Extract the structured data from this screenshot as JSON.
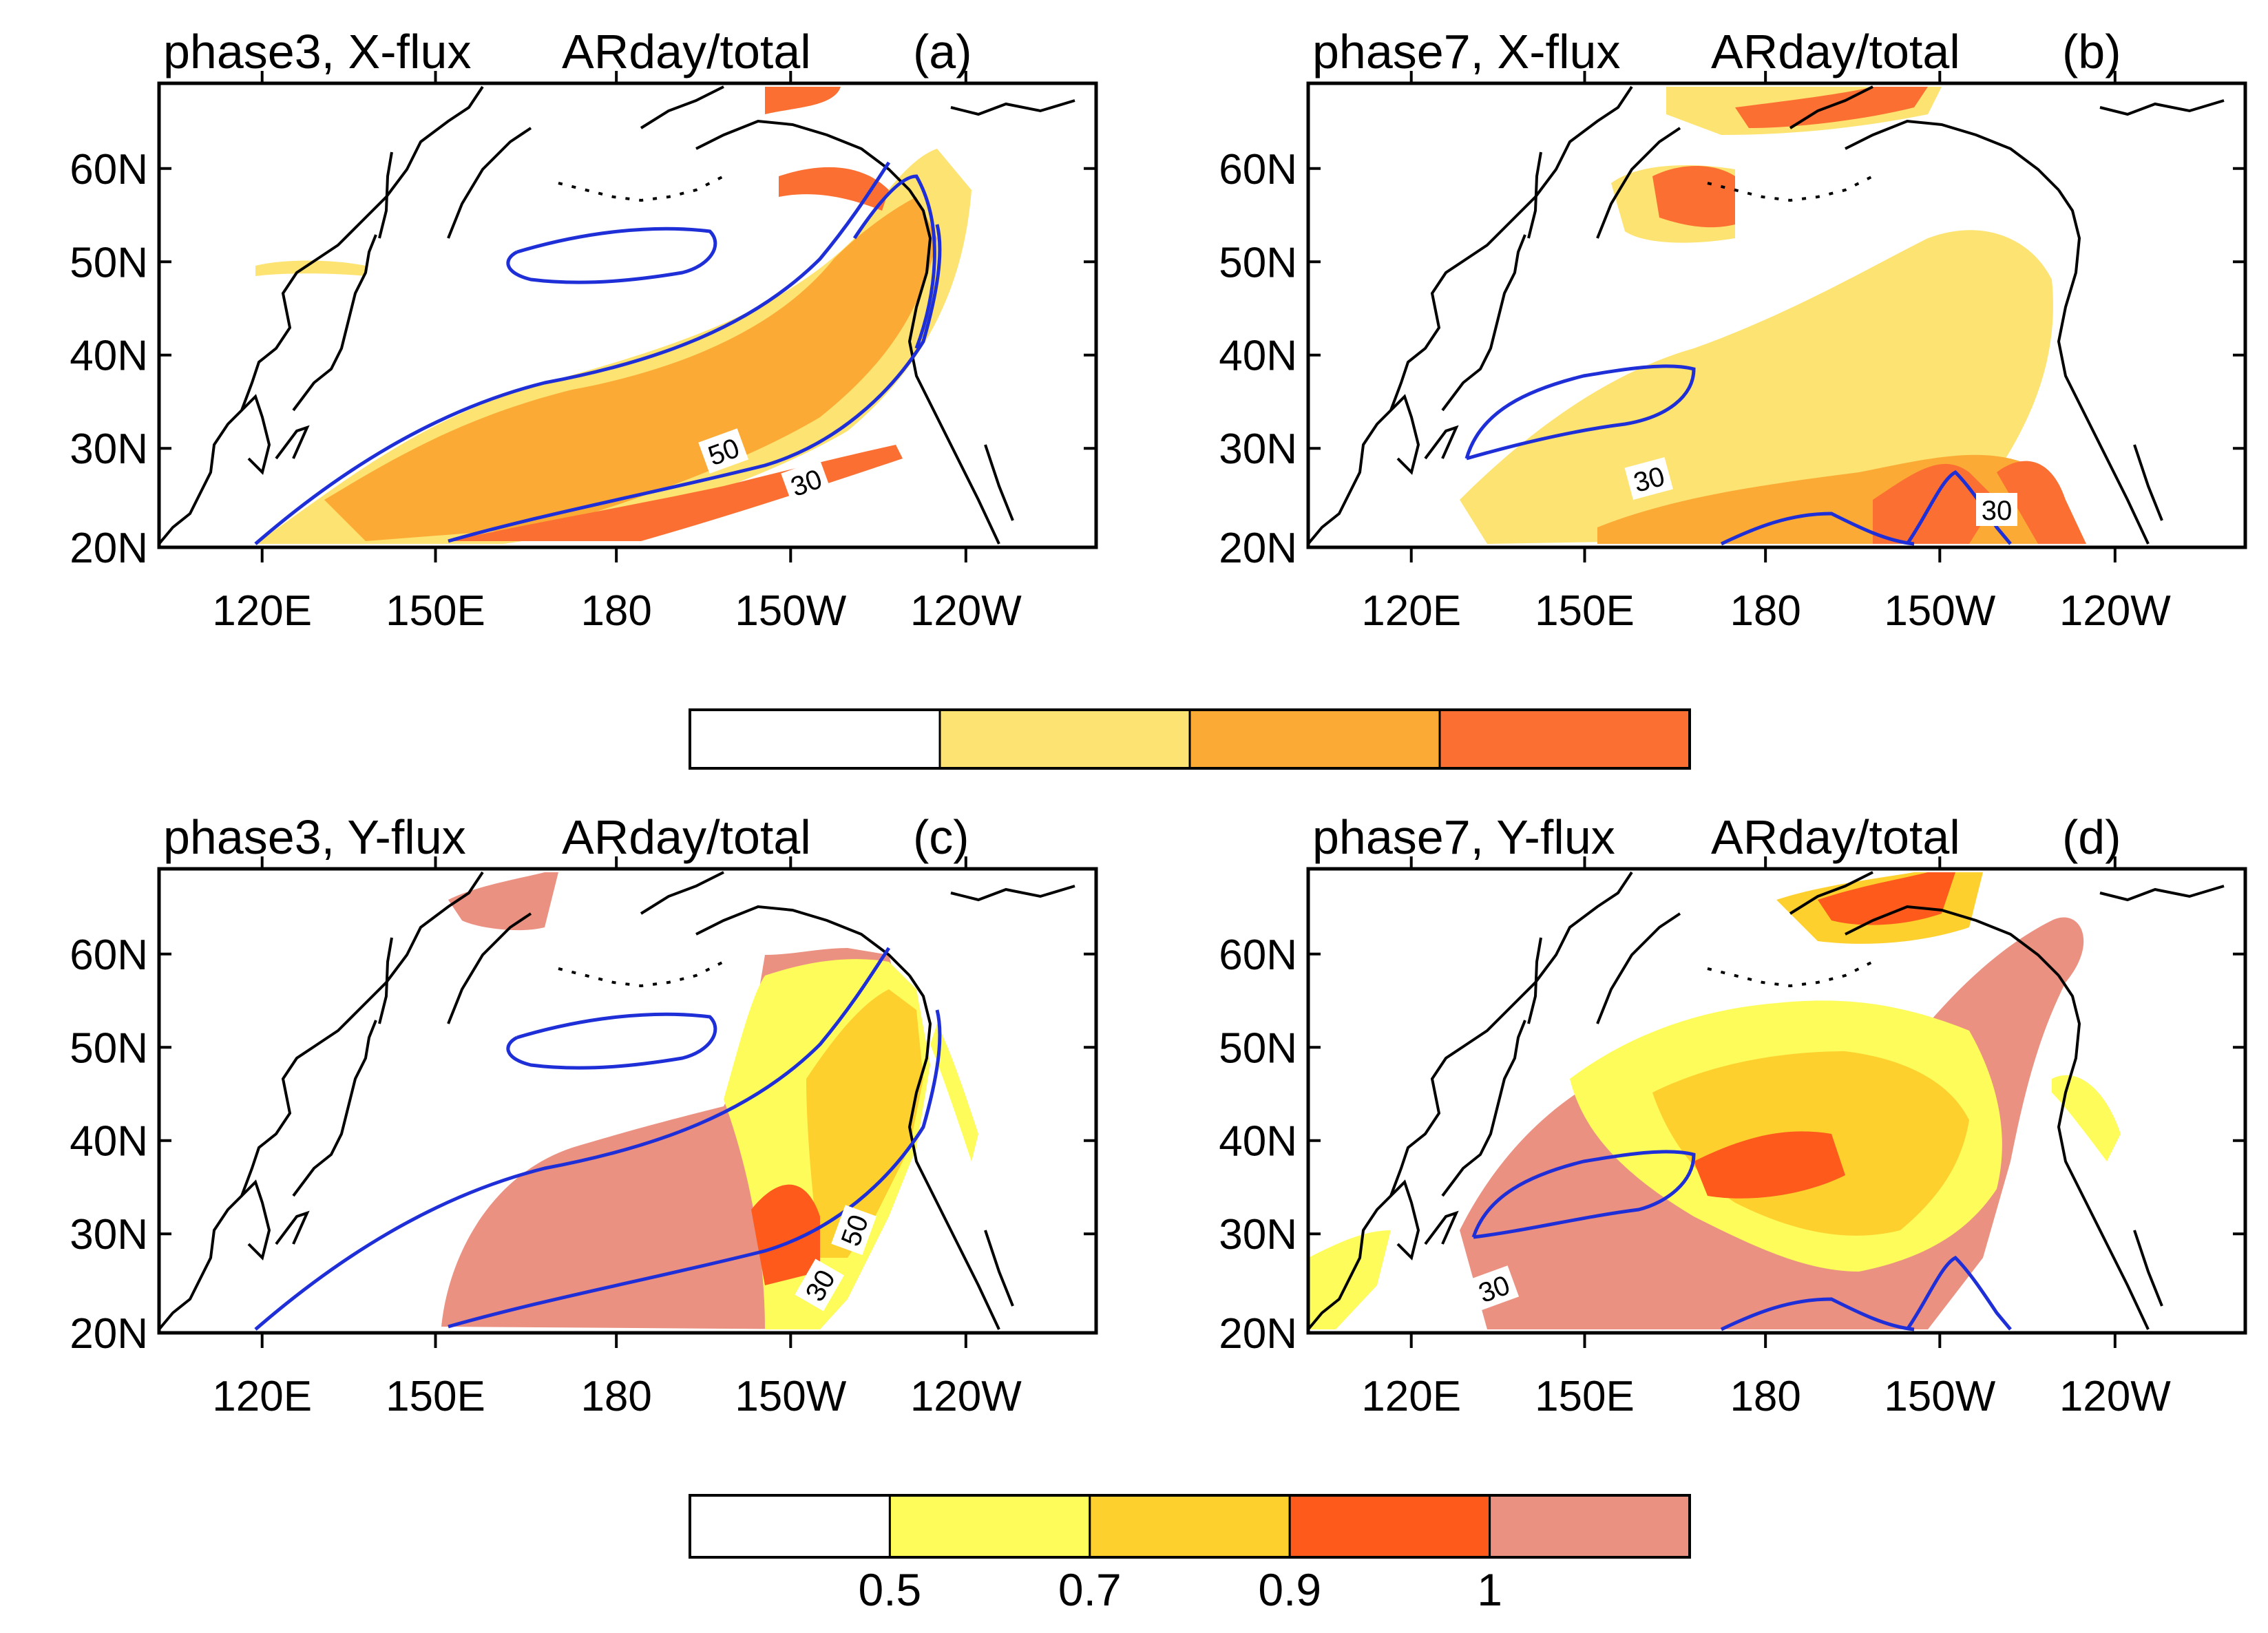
{
  "figure": {
    "panels": [
      {
        "id": "a",
        "title_left": "phase3, X-flux",
        "title_mid": "ARday/total",
        "title_right": "(a)"
      },
      {
        "id": "b",
        "title_left": "phase7, X-flux",
        "title_mid": "ARday/total",
        "title_right": "(b)"
      },
      {
        "id": "c",
        "title_left": "phase3, Y-flux",
        "title_mid": "ARday/total",
        "title_right": "(c)"
      },
      {
        "id": "d",
        "title_left": "phase7, Y-flux",
        "title_mid": "ARday/total",
        "title_right": "(d)"
      }
    ],
    "lat_ticks": [
      "60N",
      "50N",
      "40N",
      "30N",
      "20N"
    ],
    "lon_ticks": [
      "120E",
      "150E",
      "180",
      "150W",
      "120W"
    ],
    "contour_labels": {
      "a": [
        "50",
        "30"
      ],
      "b": [
        "30",
        "30"
      ],
      "c": [
        "50",
        "30"
      ],
      "d": [
        "30"
      ]
    }
  },
  "colorbar_x": {
    "colors": [
      "#ffffff",
      "#fde371",
      "#fbab35",
      "#fc6f32"
    ]
  },
  "colorbar_y": {
    "colors": [
      "#ffffff",
      "#fefc5b",
      "#fdd02e",
      "#fe5a1c",
      "#eb9182"
    ],
    "labels": [
      "0.5",
      "0.7",
      "0.9",
      "1"
    ]
  },
  "colors": {
    "contour": "#1f2fd8",
    "coast": "#000000"
  }
}
